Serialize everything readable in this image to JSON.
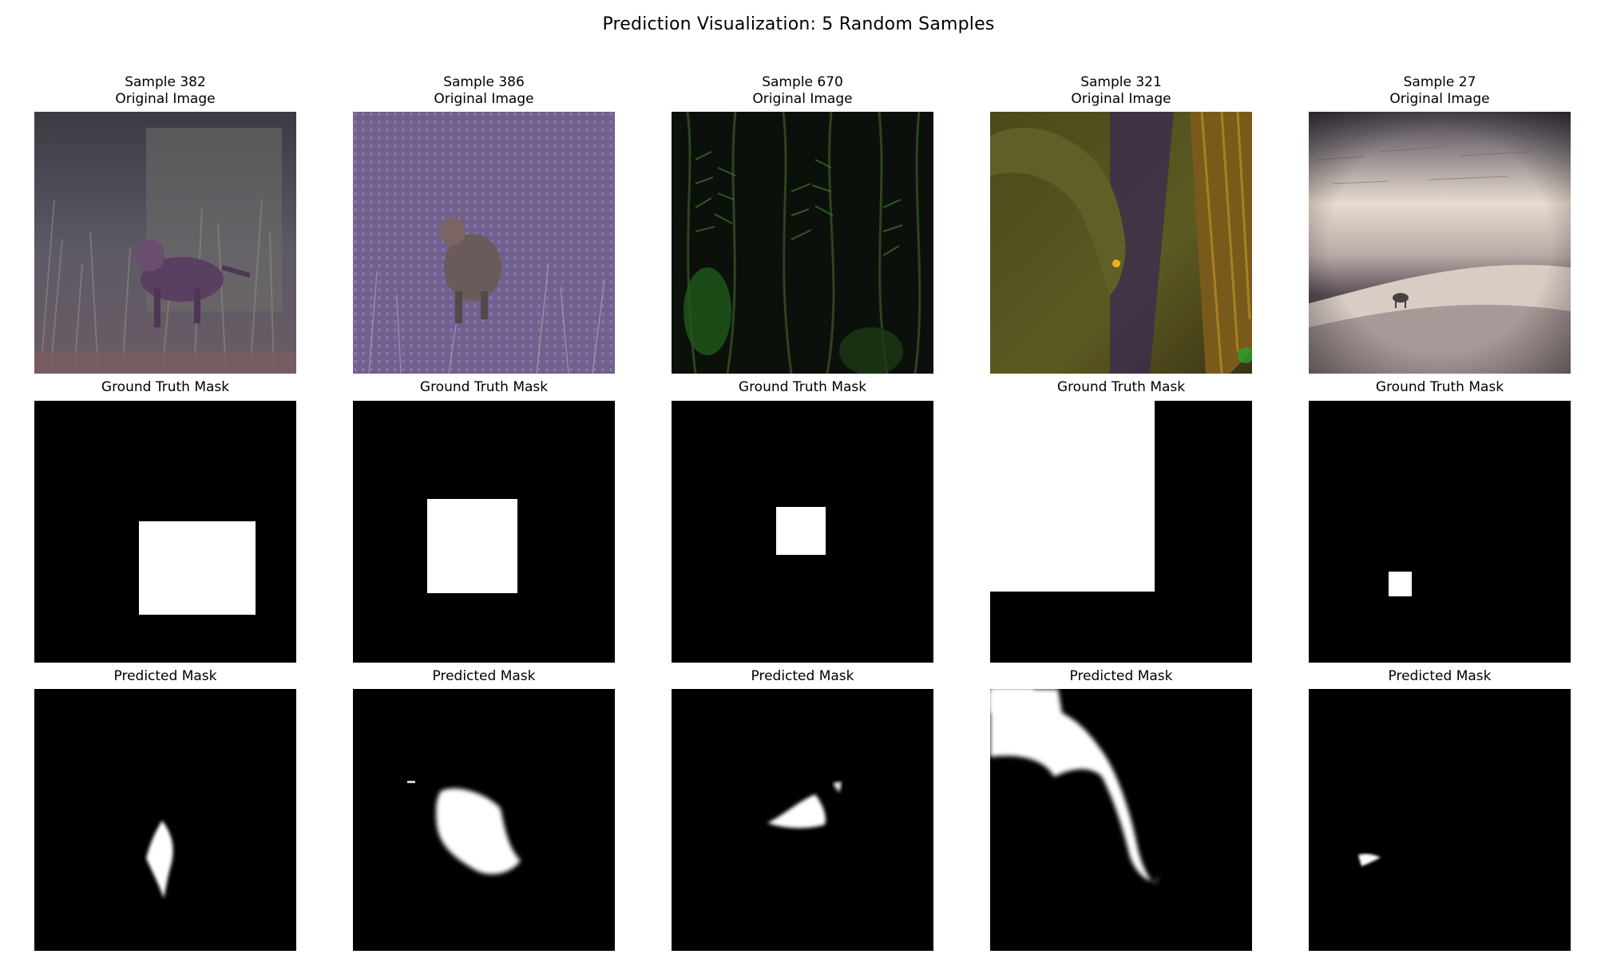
{
  "figure": {
    "title": "Prediction Visualization: 5 Random Samples"
  },
  "row_titles": {
    "original": "Original Image",
    "ground_truth": "Ground Truth Mask",
    "predicted": "Predicted Mask"
  },
  "samples": [
    {
      "label": "Sample 382",
      "scene": "dusky animal walking through tall grass"
    },
    {
      "label": "Sample 386",
      "scene": "cub on purple-tinted grassy slope"
    },
    {
      "label": "Sample 670",
      "scene": "dark jungle foliage with green fronds"
    },
    {
      "label": "Sample 321",
      "scene": "lizard on mossy tree trunk"
    },
    {
      "label": "Sample 27",
      "scene": "small animal on sandy dune under bright sky"
    }
  ],
  "colors": {
    "mask_background": "#000000",
    "mask_foreground": "#ffffff"
  }
}
